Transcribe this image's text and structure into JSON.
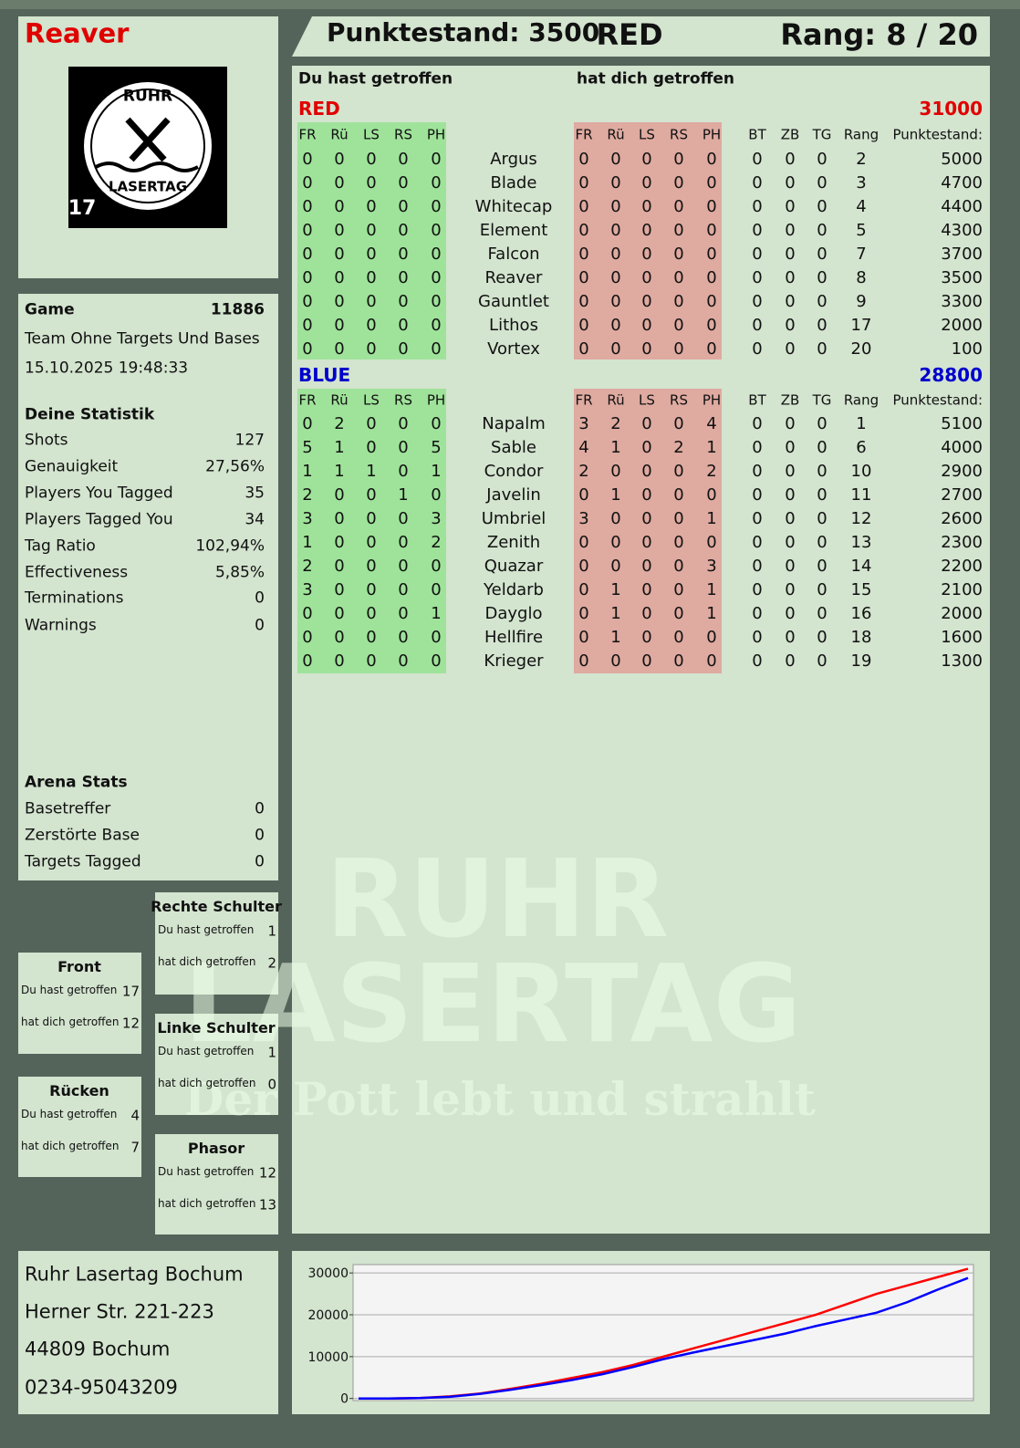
{
  "header": {
    "player": "Reaver",
    "score": "Punktestand: 3500",
    "team": "RED",
    "rank": "Rang: 8 / 20"
  },
  "logo": {
    "top": "RUHR",
    "bottom": "LASERTAG",
    "badge": "17"
  },
  "watermark": {
    "line1": "RUHR",
    "line2": "LASERTAG",
    "slogan": "Der Pott lebt und strahlt"
  },
  "game": {
    "label": "Game",
    "id": 11886,
    "mode": "Team Ohne Targets Und Bases",
    "date": "15.10.2025 19:48:33"
  },
  "stats": {
    "title": "Deine Statistik",
    "rows": [
      [
        "Shots",
        127
      ],
      [
        "Genauigkeit",
        "27,56%"
      ],
      [
        "Players You Tagged",
        35
      ],
      [
        "Players Tagged You",
        34
      ],
      [
        "Tag Ratio",
        "102,94%"
      ],
      [
        "Effectiveness",
        "5,85%"
      ],
      [
        "Terminations",
        0
      ],
      [
        "Warnings",
        0
      ]
    ]
  },
  "arena": {
    "title": "Arena Stats",
    "rows": [
      [
        "Basetreffer",
        0
      ],
      [
        "Zerstörte Base",
        0
      ],
      [
        "Targets Tagged",
        0
      ]
    ]
  },
  "zones": [
    {
      "title": "Rechte Schulter",
      "rows": [
        [
          "Du hast getroffen",
          1
        ],
        [
          "hat dich getroffen",
          2
        ]
      ]
    },
    {
      "title": "Front",
      "rows": [
        [
          "Du hast getroffen",
          17
        ],
        [
          "hat dich getroffen",
          12
        ]
      ]
    },
    {
      "title": "Linke Schulter",
      "rows": [
        [
          "Du hast getroffen",
          1
        ],
        [
          "hat dich getroffen",
          0
        ]
      ]
    },
    {
      "title": "Rücken",
      "rows": [
        [
          "Du hast getroffen",
          4
        ],
        [
          "hat dich getroffen",
          7
        ]
      ]
    },
    {
      "title": "Phasor",
      "rows": [
        [
          "Du hast getroffen",
          12
        ],
        [
          "hat dich getroffen",
          13
        ]
      ]
    }
  ],
  "address": [
    "Ruhr Lasertag Bochum",
    "Herner Str. 221-223",
    "44809 Bochum",
    "0234-95043209"
  ],
  "table": {
    "hit_heading": "Du hast getroffen",
    "got_heading": "hat dich getroffen",
    "columns": [
      "FR",
      "Rü",
      "LS",
      "RS",
      "PH",
      "FR",
      "Rü",
      "LS",
      "RS",
      "PH",
      "BT",
      "ZB",
      "TG",
      "Rang",
      "Punktestand:"
    ],
    "teams": [
      {
        "name": "RED",
        "color": "#e00000",
        "total": 31000,
        "rows": [
          [
            0,
            0,
            0,
            0,
            0,
            "Argus",
            0,
            0,
            0,
            0,
            0,
            0,
            0,
            0,
            2,
            5000
          ],
          [
            0,
            0,
            0,
            0,
            0,
            "Blade",
            0,
            0,
            0,
            0,
            0,
            0,
            0,
            0,
            3,
            4700
          ],
          [
            0,
            0,
            0,
            0,
            0,
            "Whitecap",
            0,
            0,
            0,
            0,
            0,
            0,
            0,
            0,
            4,
            4400
          ],
          [
            0,
            0,
            0,
            0,
            0,
            "Element",
            0,
            0,
            0,
            0,
            0,
            0,
            0,
            0,
            5,
            4300
          ],
          [
            0,
            0,
            0,
            0,
            0,
            "Falcon",
            0,
            0,
            0,
            0,
            0,
            0,
            0,
            0,
            7,
            3700
          ],
          [
            0,
            0,
            0,
            0,
            0,
            "Reaver",
            0,
            0,
            0,
            0,
            0,
            0,
            0,
            0,
            8,
            3500
          ],
          [
            0,
            0,
            0,
            0,
            0,
            "Gauntlet",
            0,
            0,
            0,
            0,
            0,
            0,
            0,
            0,
            9,
            3300
          ],
          [
            0,
            0,
            0,
            0,
            0,
            "Lithos",
            0,
            0,
            0,
            0,
            0,
            0,
            0,
            0,
            17,
            2000
          ],
          [
            0,
            0,
            0,
            0,
            0,
            "Vortex",
            0,
            0,
            0,
            0,
            0,
            0,
            0,
            0,
            20,
            100
          ]
        ]
      },
      {
        "name": "BLUE",
        "color": "#0000cc",
        "total": 28800,
        "rows": [
          [
            0,
            2,
            0,
            0,
            0,
            "Napalm",
            3,
            2,
            0,
            0,
            4,
            0,
            0,
            0,
            1,
            5100
          ],
          [
            5,
            1,
            0,
            0,
            5,
            "Sable",
            4,
            1,
            0,
            2,
            1,
            0,
            0,
            0,
            6,
            4000
          ],
          [
            1,
            1,
            1,
            0,
            1,
            "Condor",
            2,
            0,
            0,
            0,
            2,
            0,
            0,
            0,
            10,
            2900
          ],
          [
            2,
            0,
            0,
            1,
            0,
            "Javelin",
            0,
            1,
            0,
            0,
            0,
            0,
            0,
            0,
            11,
            2700
          ],
          [
            3,
            0,
            0,
            0,
            3,
            "Umbriel",
            3,
            0,
            0,
            0,
            1,
            0,
            0,
            0,
            12,
            2600
          ],
          [
            1,
            0,
            0,
            0,
            2,
            "Zenith",
            0,
            0,
            0,
            0,
            0,
            0,
            0,
            0,
            13,
            2300
          ],
          [
            2,
            0,
            0,
            0,
            0,
            "Quazar",
            0,
            0,
            0,
            0,
            3,
            0,
            0,
            0,
            14,
            2200
          ],
          [
            3,
            0,
            0,
            0,
            0,
            "Yeldarb",
            0,
            1,
            0,
            0,
            1,
            0,
            0,
            0,
            15,
            2100
          ],
          [
            0,
            0,
            0,
            0,
            1,
            "Dayglo",
            0,
            1,
            0,
            0,
            1,
            0,
            0,
            0,
            16,
            2000
          ],
          [
            0,
            0,
            0,
            0,
            0,
            "Hellfire",
            0,
            1,
            0,
            0,
            0,
            0,
            0,
            0,
            18,
            1600
          ],
          [
            0,
            0,
            0,
            0,
            0,
            "Krieger",
            0,
            0,
            0,
            0,
            0,
            0,
            0,
            0,
            19,
            1300
          ]
        ]
      }
    ]
  },
  "chart_data": {
    "type": "line",
    "categories": [
      null,
      null,
      null,
      null,
      null,
      null,
      null,
      null,
      null,
      null,
      null,
      null,
      null,
      null,
      null,
      null,
      null,
      null,
      null,
      null,
      null
    ],
    "series": [
      {
        "name": "RED",
        "color": "#ff0000",
        "values": [
          0,
          0,
          100,
          500,
          1200,
          2300,
          3500,
          4900,
          6300,
          8000,
          10000,
          12000,
          14000,
          16000,
          18000,
          20000,
          22500,
          25000,
          27000,
          29000,
          31000
        ]
      },
      {
        "name": "BLUE",
        "color": "#0000ff",
        "values": [
          0,
          0,
          100,
          400,
          1100,
          2100,
          3200,
          4400,
          5800,
          7500,
          9400,
          11000,
          12500,
          14000,
          15500,
          17300,
          18900,
          20500,
          23000,
          26000,
          28800
        ]
      }
    ],
    "ylim": [
      -500,
      32000
    ],
    "yticks": [
      0,
      10000,
      20000,
      30000
    ],
    "grid": true
  }
}
